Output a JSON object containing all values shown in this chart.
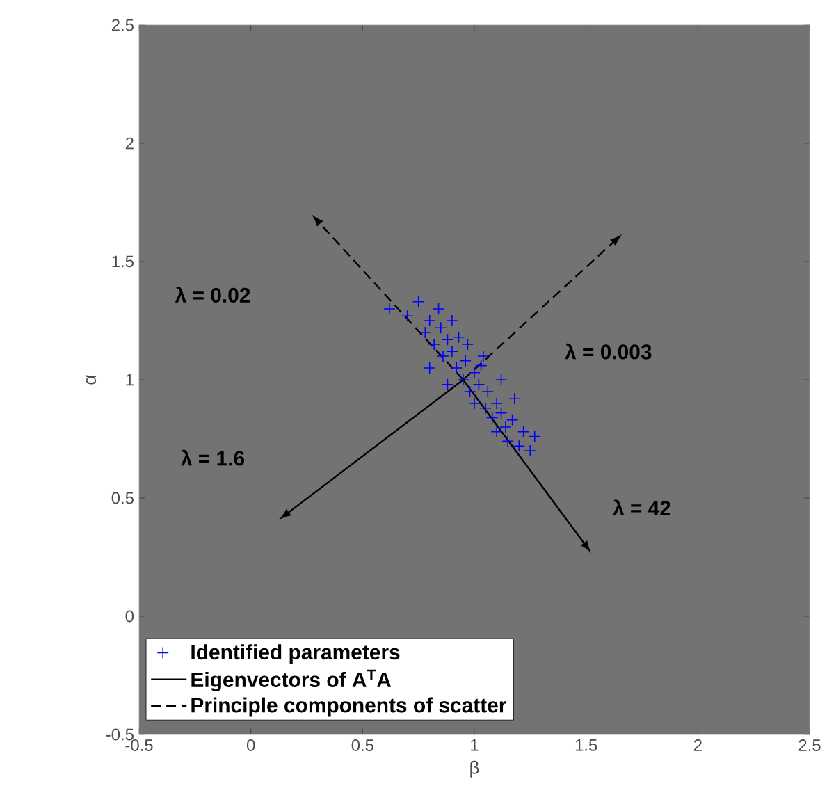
{
  "chart_data": {
    "type": "scatter",
    "xlabel": "β",
    "ylabel": "α",
    "xlim": [
      -0.5,
      2.5
    ],
    "ylim": [
      -0.5,
      2.5
    ],
    "xticks": [
      -0.5,
      0,
      0.5,
      1,
      1.5,
      2,
      2.5
    ],
    "yticks": [
      -0.5,
      0,
      0.5,
      1,
      1.5,
      2,
      2.5
    ],
    "legend": "bottom left",
    "grid": false,
    "series": [
      {
        "name": "Identified parameters",
        "color": "#0000ff",
        "marker": "cross",
        "x": [
          0.62,
          0.7,
          0.75,
          0.78,
          0.8,
          0.82,
          0.85,
          0.86,
          0.88,
          0.9,
          0.92,
          0.93,
          0.95,
          0.96,
          0.98,
          1.0,
          1.0,
          1.02,
          1.03,
          1.05,
          1.06,
          1.08,
          1.1,
          1.1,
          1.12,
          1.14,
          1.15,
          1.17,
          1.2,
          1.22,
          1.25,
          1.27,
          0.84,
          0.9,
          0.97,
          1.04,
          1.12,
          0.8,
          0.88,
          1.18
        ],
        "values": [
          1.3,
          1.27,
          1.33,
          1.2,
          1.25,
          1.15,
          1.22,
          1.1,
          1.17,
          1.12,
          1.05,
          1.18,
          1.0,
          1.08,
          0.95,
          1.03,
          0.9,
          0.98,
          1.06,
          0.88,
          0.95,
          0.84,
          0.9,
          0.78,
          0.86,
          0.8,
          0.74,
          0.83,
          0.72,
          0.78,
          0.7,
          0.76,
          1.3,
          1.25,
          1.15,
          1.1,
          1.0,
          1.05,
          0.98,
          0.92
        ]
      },
      {
        "type": "line",
        "name": "Eigenvectors of A$^{T}$A",
        "color": "#000000",
        "line_style": "solid",
        "x": [
          0.95,
          1.49
        ],
        "values": [
          1.0,
          0.31
        ]
      },
      {
        "type": "line",
        "color": "#000000",
        "line_style": "solid",
        "x": [
          0.95,
          0.17
        ],
        "values": [
          1.0,
          0.44
        ]
      },
      {
        "type": "line",
        "name": "Principle components of scatter",
        "color": "#000000",
        "line_style": "dashed",
        "x": [
          0.95,
          0.31
        ],
        "values": [
          1.0,
          1.66
        ]
      },
      {
        "type": "line",
        "color": "#000000",
        "line_style": "dashed",
        "x": [
          0.95,
          1.62
        ],
        "values": [
          1.0,
          1.58
        ]
      }
    ],
    "annotations": [
      "λ = 0.02",
      "λ = 0.003",
      "λ = 1.6",
      "λ = 42"
    ]
  }
}
